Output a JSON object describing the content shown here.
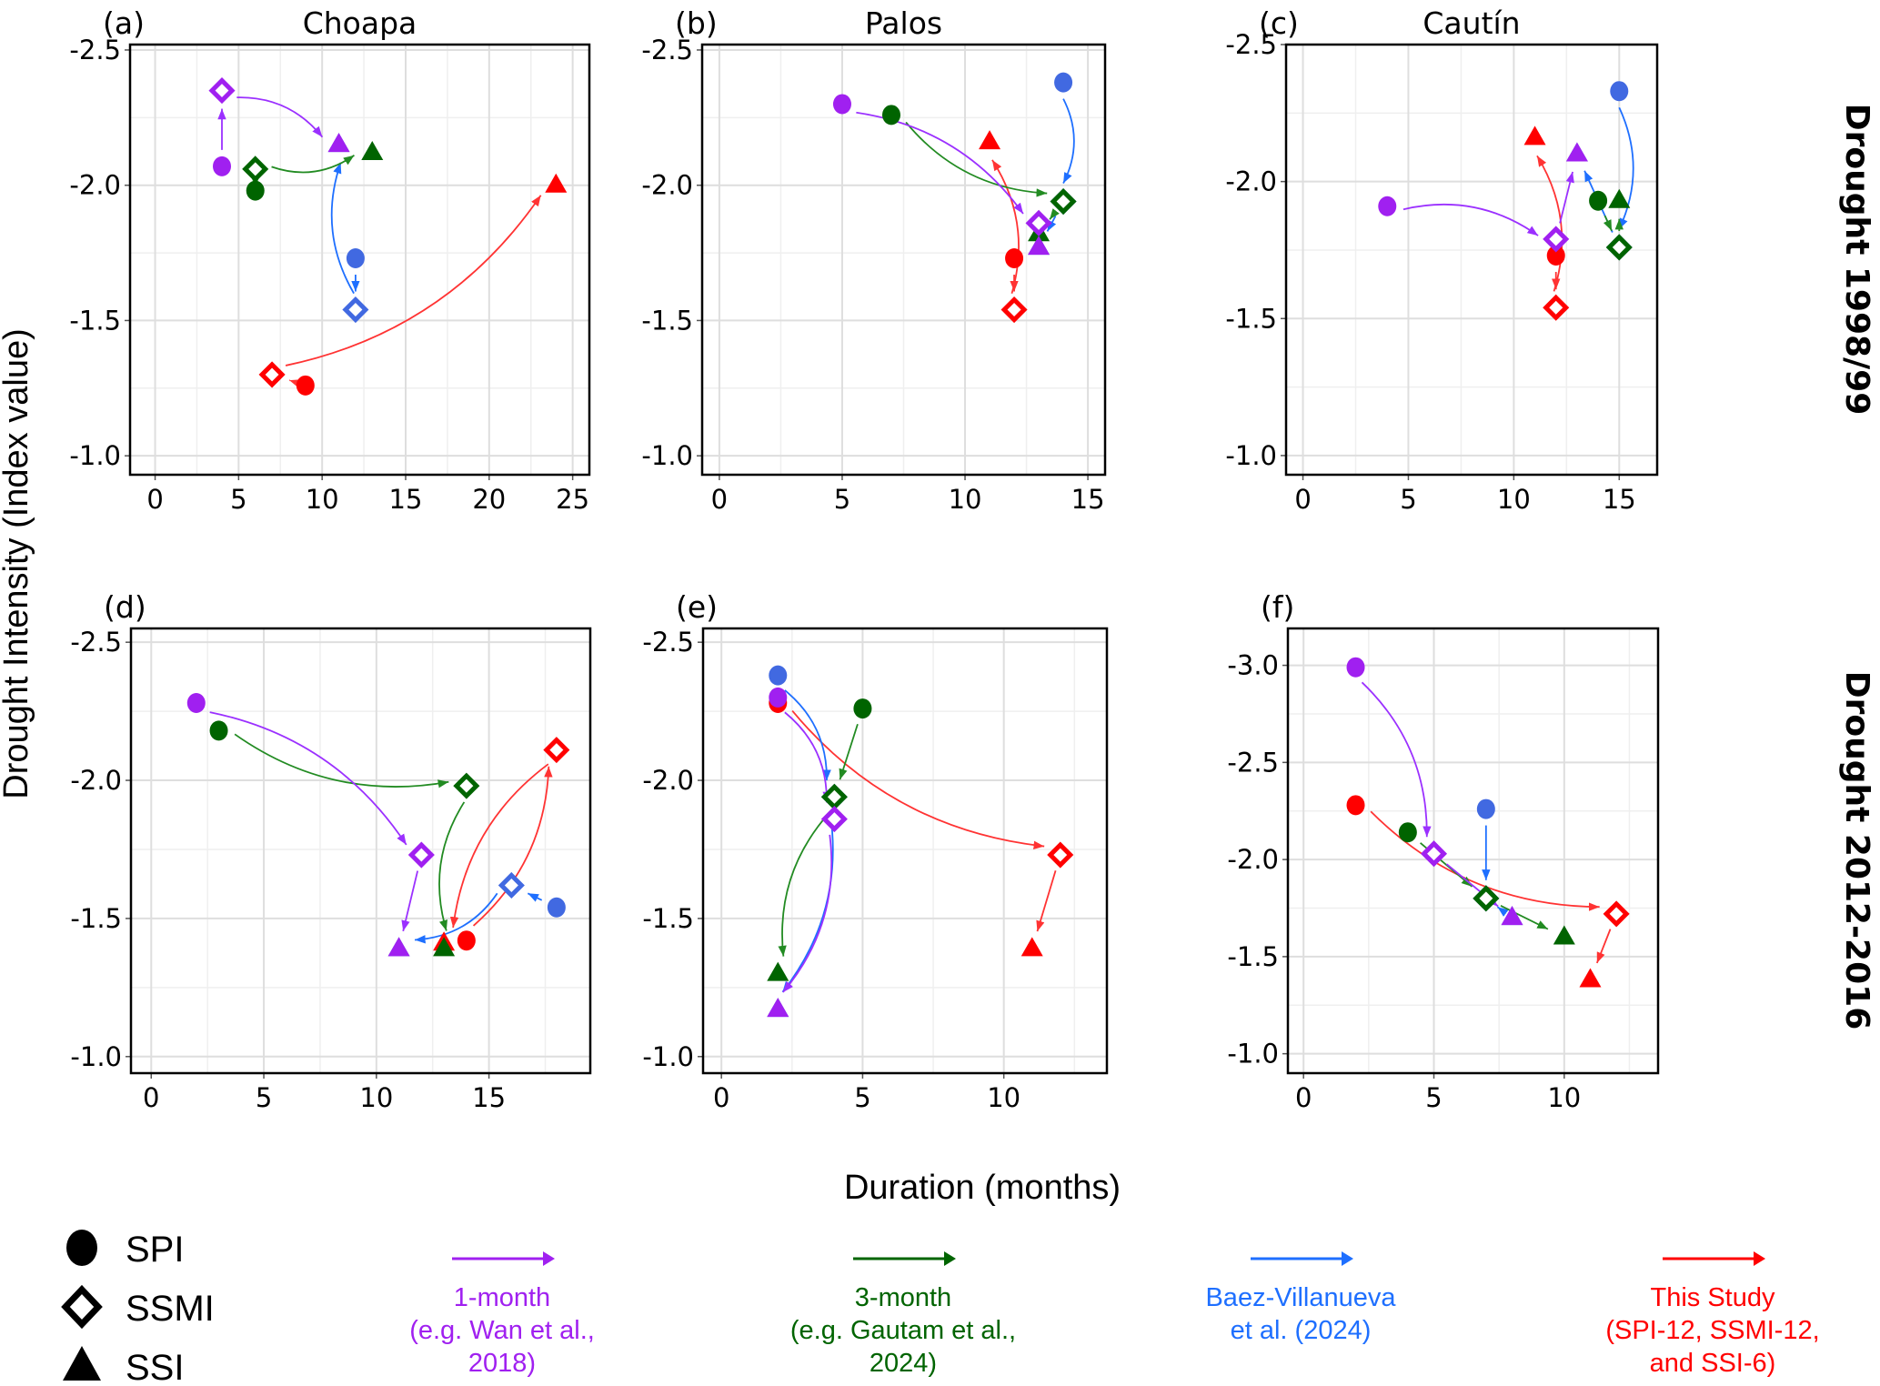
{
  "chart_data": {
    "type": "scatter",
    "title": "",
    "xlabel": "Duration (months)",
    "ylabel": "Drought Intensity (Index value)",
    "row_labels": [
      "Drought 1998/99",
      "Drought 2012-2016"
    ],
    "markers": [
      {
        "key": "SPI",
        "label": "SPI",
        "shape": "circle"
      },
      {
        "key": "SSMI",
        "label": "SSMI",
        "shape": "diamond-open"
      },
      {
        "key": "SSI",
        "label": "SSI",
        "shape": "triangle"
      }
    ],
    "series_styles": [
      {
        "key": "m1",
        "label_lines": [
          "1-month",
          "(e.g. Wan et al.,",
          "2018)"
        ],
        "color": "#A020F0",
        "marker_color": "#A020F0",
        "arrow_color": "#9B30FF"
      },
      {
        "key": "m3",
        "label_lines": [
          "3-month",
          "(e.g. Gautam et al.,",
          "2024)"
        ],
        "color": "#006400",
        "marker_color": "#006400",
        "arrow_color": "#228B22"
      },
      {
        "key": "bv",
        "label_lines": [
          "Baez-Villanueva",
          "et al. (2024)"
        ],
        "color": "#1E6FFF",
        "marker_color": "#4169E1",
        "arrow_color": "#1E6FFF"
      },
      {
        "key": "ts",
        "label_lines": [
          "This Study",
          "(SPI-12, SSMI-12,",
          "and SSI-6)"
        ],
        "color": "#FF0000",
        "marker_color": "#FF0000",
        "arrow_color": "#FF3333"
      }
    ],
    "panels": [
      {
        "id": "a",
        "letter": "(a)",
        "title": "Choapa",
        "xlim": [
          -1.5,
          26
        ],
        "ylim": [
          -2.52,
          -0.93
        ],
        "xticks": [
          0,
          5,
          10,
          15,
          20,
          25
        ],
        "yticks": [
          -2.5,
          -2.0,
          -1.5,
          -1.0
        ],
        "ytick_labels": [
          "-2.5",
          "-2.0",
          "-1.5",
          "-1.0"
        ],
        "series": {
          "m1": {
            "SPI": [
              4,
              -2.07
            ],
            "SSMI": [
              4,
              -2.35
            ],
            "SSI": [
              11,
              -2.15
            ]
          },
          "m3": {
            "SPI": [
              6,
              -1.98
            ],
            "SSMI": [
              6,
              -2.06
            ],
            "SSI": [
              13,
              -2.12
            ]
          },
          "bv": {
            "SPI": [
              12,
              -1.73
            ],
            "SSMI": [
              12,
              -1.54
            ],
            "SSI": [
              11,
              -2.15
            ]
          },
          "ts": {
            "SPI": [
              9,
              -1.26
            ],
            "SSMI": [
              7,
              -1.3
            ],
            "SSI": [
              24,
              -2.0
            ]
          }
        }
      },
      {
        "id": "b",
        "letter": "(b)",
        "title": "Palos",
        "xlim": [
          -0.7,
          15.7
        ],
        "ylim": [
          -2.52,
          -0.93
        ],
        "xticks": [
          0,
          5,
          10,
          15
        ],
        "yticks": [
          -2.5,
          -2.0,
          -1.5,
          -1.0
        ],
        "ytick_labels": [
          "-2.5",
          "-2.0",
          "-1.5",
          "-1.0"
        ],
        "series": {
          "m1": {
            "SPI": [
              5,
              -2.3
            ],
            "SSMI": [
              13,
              -1.86
            ],
            "SSI": [
              13,
              -1.77
            ]
          },
          "m3": {
            "SPI": [
              7,
              -2.26
            ],
            "SSMI": [
              14,
              -1.94
            ],
            "SSI": [
              13,
              -1.82
            ]
          },
          "bv": {
            "SPI": [
              14,
              -2.38
            ],
            "SSMI": [
              14,
              -1.94
            ],
            "SSI": [
              13,
              -1.77
            ]
          },
          "ts": {
            "SPI": [
              12,
              -1.73
            ],
            "SSMI": [
              12,
              -1.54
            ],
            "SSI": [
              11,
              -2.16
            ]
          }
        }
      },
      {
        "id": "c",
        "letter": "(c)",
        "title": "Cautín",
        "xlim": [
          -0.8,
          16.8
        ],
        "ylim": [
          -2.5,
          -0.93
        ],
        "xticks": [
          0,
          5,
          10,
          15
        ],
        "yticks": [
          -2.5,
          -2.0,
          -1.5,
          -1.0
        ],
        "ytick_labels": [
          "-2.5",
          "-2.0",
          "-1.5",
          "-1.0"
        ],
        "series": {
          "m1": {
            "SPI": [
              4,
              -1.91
            ],
            "SSMI": [
              12,
              -1.79
            ],
            "SSI": [
              13,
              -2.1
            ]
          },
          "m3": {
            "SPI": [
              14,
              -1.93
            ],
            "SSMI": [
              15,
              -1.76
            ],
            "SSI": [
              15,
              -1.93
            ]
          },
          "bv": {
            "SPI": [
              15,
              -2.33
            ],
            "SSMI": [
              15,
              -1.76
            ],
            "SSI": [
              13,
              -2.1
            ]
          },
          "ts": {
            "SPI": [
              12,
              -1.73
            ],
            "SSMI": [
              12,
              -1.54
            ],
            "SSI": [
              11,
              -2.16
            ]
          }
        }
      },
      {
        "id": "d",
        "letter": "(d)",
        "title": "",
        "xlim": [
          -0.9,
          19.5
        ],
        "ylim": [
          -2.55,
          -0.94
        ],
        "xticks": [
          0,
          5,
          10,
          15
        ],
        "yticks": [
          -2.5,
          -2.0,
          -1.5,
          -1.0
        ],
        "ytick_labels": [
          "-2.5",
          "-2.0",
          "-1.5",
          "-1.0"
        ],
        "series": {
          "m1": {
            "SPI": [
              2,
              -2.28
            ],
            "SSMI": [
              12,
              -1.73
            ],
            "SSI": [
              11,
              -1.39
            ]
          },
          "m3": {
            "SPI": [
              3,
              -2.18
            ],
            "SSMI": [
              14,
              -1.98
            ],
            "SSI": [
              13,
              -1.39
            ]
          },
          "bv": {
            "SPI": [
              18,
              -1.54
            ],
            "SSMI": [
              16,
              -1.62
            ],
            "SSI": [
              11,
              -1.39
            ]
          },
          "ts": {
            "SPI": [
              14,
              -1.42
            ],
            "SSMI": [
              18,
              -2.11
            ],
            "SSI": [
              13,
              -1.41
            ]
          }
        }
      },
      {
        "id": "e",
        "letter": "(e)",
        "title": "",
        "xlim": [
          -0.65,
          13.65
        ],
        "ylim": [
          -2.55,
          -0.94
        ],
        "xticks": [
          0,
          5,
          10
        ],
        "yticks": [
          -2.5,
          -2.0,
          -1.5,
          -1.0
        ],
        "ytick_labels": [
          "-2.5",
          "-2.0",
          "-1.5",
          "-1.0"
        ],
        "series": {
          "m1": {
            "SPI": [
              2,
              -2.3
            ],
            "SSMI": [
              4,
              -1.86
            ],
            "SSI": [
              2,
              -1.17
            ]
          },
          "m3": {
            "SPI": [
              5,
              -2.26
            ],
            "SSMI": [
              4,
              -1.94
            ],
            "SSI": [
              2,
              -1.3
            ]
          },
          "bv": {
            "SPI": [
              2,
              -2.38
            ],
            "SSMI": [
              4,
              -1.94
            ],
            "SSI": [
              2,
              -1.17
            ]
          },
          "ts": {
            "SPI": [
              2,
              -2.28
            ],
            "SSMI": [
              12,
              -1.73
            ],
            "SSI": [
              11,
              -1.39
            ]
          }
        }
      },
      {
        "id": "f",
        "letter": "(f)",
        "title": "",
        "xlim": [
          -0.6,
          13.6
        ],
        "ylim": [
          -3.19,
          -0.9
        ],
        "xticks": [
          0,
          5,
          10
        ],
        "yticks": [
          -3.0,
          -2.5,
          -2.0,
          -1.5,
          -1.0
        ],
        "ytick_labels": [
          "-3.0",
          "-2.5",
          "-2.0",
          "-1.5",
          "-1.0"
        ],
        "series": {
          "m1": {
            "SPI": [
              2,
              -2.99
            ],
            "SSMI": [
              5,
              -2.03
            ],
            "SSI": [
              8,
              -1.7
            ]
          },
          "m3": {
            "SPI": [
              4,
              -2.14
            ],
            "SSMI": [
              7,
              -1.8
            ],
            "SSI": [
              10,
              -1.6
            ]
          },
          "bv": {
            "SPI": [
              7,
              -2.26
            ],
            "SSMI": [
              7,
              -1.8
            ],
            "SSI": [
              8,
              -1.7
            ]
          },
          "ts": {
            "SPI": [
              2,
              -2.28
            ],
            "SSMI": [
              12,
              -1.72
            ],
            "SSI": [
              11,
              -1.38
            ]
          }
        }
      }
    ],
    "legend_placement": "bottom"
  }
}
